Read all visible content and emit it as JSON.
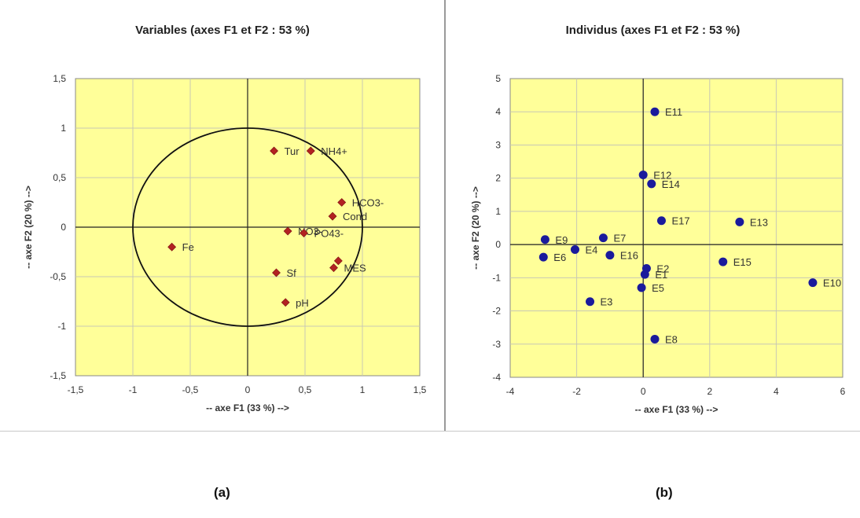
{
  "captions": {
    "left": "(a)",
    "right": "(b)"
  },
  "colors": {
    "plot_bg": "#ffff99",
    "grid": "#c8c8b4",
    "variable_marker": "#b22222",
    "individual_marker": "#1a1a9c",
    "text": "#333333"
  },
  "chart_data": [
    {
      "type": "scatter",
      "title": "Variables (axes F1 et F2 : 53 %)",
      "xlabel": "-- axe F1 (33 %) -->",
      "ylabel": "-- axe F2 (20 %) -->",
      "xlim": [
        -1.5,
        1.5
      ],
      "ylim": [
        -1.5,
        1.5
      ],
      "xticks": [
        -1.5,
        -1,
        -0.5,
        0,
        0.5,
        1,
        1.5
      ],
      "yticks": [
        -1.5,
        -1,
        -0.5,
        0,
        0.5,
        1,
        1.5
      ],
      "xtick_labels": [
        "-1,5",
        "-1",
        "-0,5",
        "0",
        "0,5",
        "1",
        "1,5"
      ],
      "ytick_labels": [
        "-1,5",
        "-1",
        "-0,5",
        "0",
        "0,5",
        "1",
        "1,5"
      ],
      "grid": true,
      "correlation_circle": true,
      "marker": "diamond",
      "points": [
        {
          "label": "Tur",
          "x": 0.23,
          "y": 0.77
        },
        {
          "label": "NH4+",
          "x": 0.55,
          "y": 0.77
        },
        {
          "label": "HCO3-",
          "x": 0.82,
          "y": 0.25
        },
        {
          "label": "Cond",
          "x": 0.74,
          "y": 0.11
        },
        {
          "label": "NO3-",
          "x": 0.35,
          "y": -0.04
        },
        {
          "label": "PO43-",
          "x": 0.49,
          "y": -0.06
        },
        {
          "label": "",
          "x": 0.79,
          "y": -0.34
        },
        {
          "label": "MES",
          "x": 0.75,
          "y": -0.41
        },
        {
          "label": "Fe",
          "x": -0.66,
          "y": -0.2
        },
        {
          "label": "Sf",
          "x": 0.25,
          "y": -0.46
        },
        {
          "label": "pH",
          "x": 0.33,
          "y": -0.76
        }
      ]
    },
    {
      "type": "scatter",
      "title": "Individus (axes F1 et F2 : 53 %)",
      "xlabel": "-- axe F1 (33 %) -->",
      "ylabel": "-- axe F2 (20 %) -->",
      "xlim": [
        -4,
        6
      ],
      "ylim": [
        -4,
        5
      ],
      "xticks": [
        -4,
        -2,
        0,
        2,
        4,
        6
      ],
      "yticks": [
        -4,
        -3,
        -2,
        -1,
        0,
        1,
        2,
        3,
        4,
        5
      ],
      "grid": true,
      "marker": "circle",
      "points": [
        {
          "label": "E11",
          "x": 0.35,
          "y": 4.0
        },
        {
          "label": "E12",
          "x": 0.0,
          "y": 2.1
        },
        {
          "label": "E14",
          "x": 0.25,
          "y": 1.83
        },
        {
          "label": "E17",
          "x": 0.55,
          "y": 0.72
        },
        {
          "label": "E13",
          "x": 2.9,
          "y": 0.68
        },
        {
          "label": "E9",
          "x": -2.95,
          "y": 0.15
        },
        {
          "label": "E7",
          "x": -1.2,
          "y": 0.2
        },
        {
          "label": "E4",
          "x": -2.05,
          "y": -0.15
        },
        {
          "label": "E6",
          "x": -3.0,
          "y": -0.38
        },
        {
          "label": "E16",
          "x": -1.0,
          "y": -0.32
        },
        {
          "label": "E15",
          "x": 2.4,
          "y": -0.52
        },
        {
          "label": "E2",
          "x": 0.1,
          "y": -0.72
        },
        {
          "label": "E1",
          "x": 0.05,
          "y": -0.9
        },
        {
          "label": "E10",
          "x": 5.1,
          "y": -1.15
        },
        {
          "label": "E5",
          "x": -0.05,
          "y": -1.3
        },
        {
          "label": "E3",
          "x": -1.6,
          "y": -1.72
        },
        {
          "label": "E8",
          "x": 0.35,
          "y": -2.85
        }
      ]
    }
  ]
}
